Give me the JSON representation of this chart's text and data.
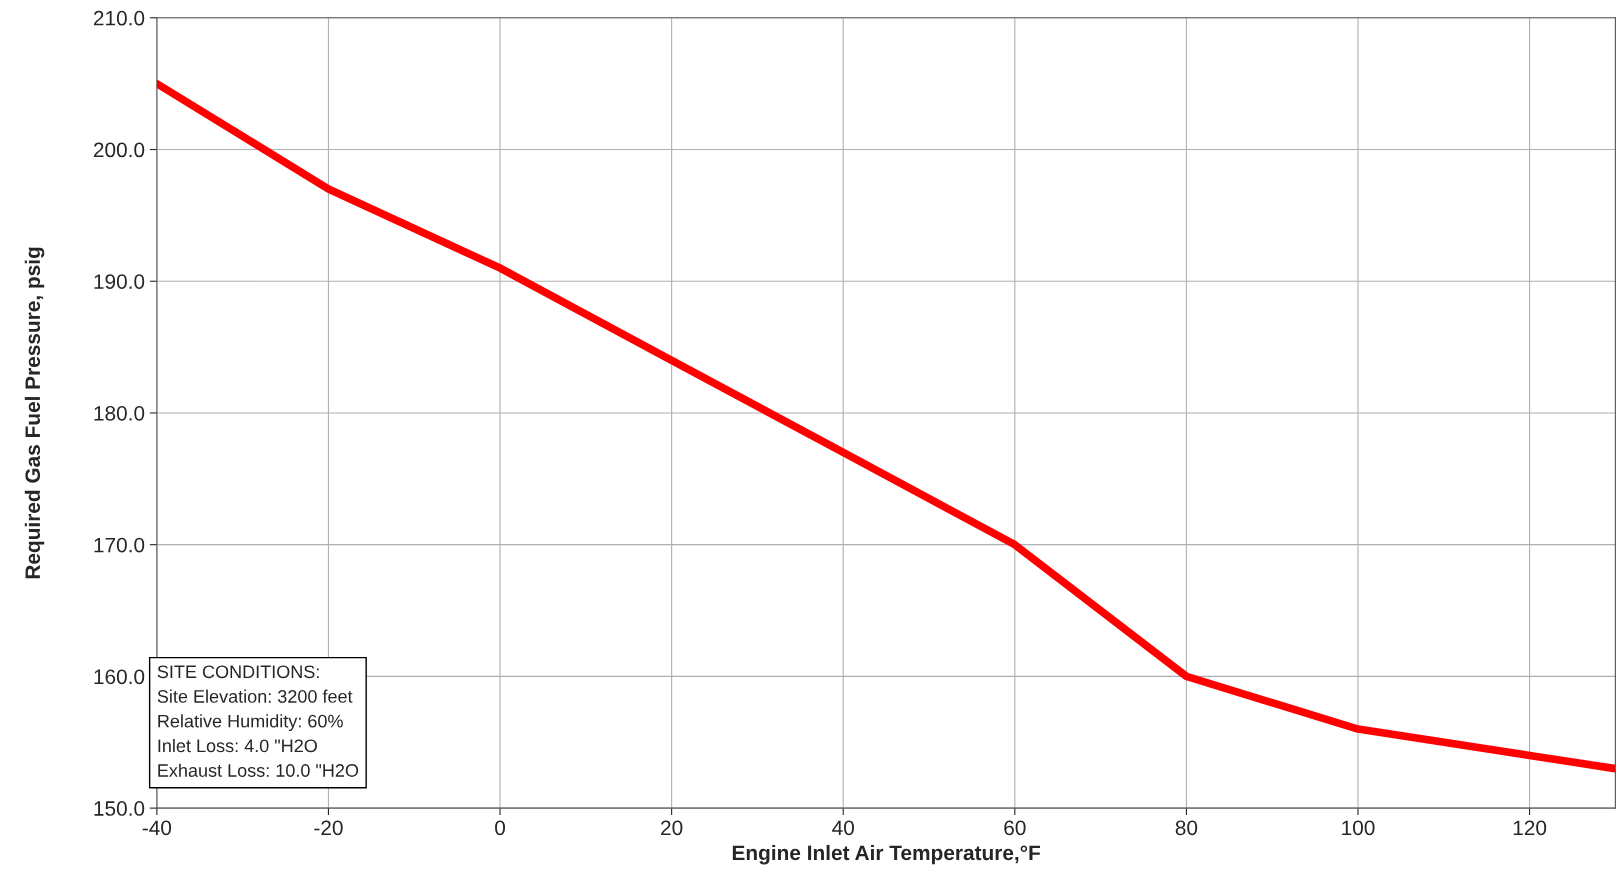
{
  "chart_data": {
    "type": "line",
    "xlabel": "Engine Inlet Air Temperature,°F",
    "ylabel": "Required Gas Fuel Pressure, psig",
    "x": [
      -40,
      -20,
      0,
      20,
      40,
      60,
      80,
      100,
      120,
      130
    ],
    "series": [
      {
        "color": "#ff0000",
        "values": [
          205,
          197,
          191,
          184,
          177,
          170,
          160,
          156,
          154,
          153
        ]
      }
    ],
    "xlim": [
      -40,
      130
    ],
    "xticks": [
      -40,
      -20,
      0,
      20,
      40,
      60,
      80,
      100,
      120
    ],
    "ylim": [
      150,
      210
    ],
    "yticks": [
      {
        "value": 150,
        "label": "150.0"
      },
      {
        "value": 160,
        "label": "160.0"
      },
      {
        "value": 170,
        "label": "170.0"
      },
      {
        "value": 180,
        "label": "180.0"
      },
      {
        "value": 190,
        "label": "190.0"
      },
      {
        "value": 200,
        "label": "200.0"
      },
      {
        "value": 210,
        "label": "210.0"
      }
    ],
    "grid": true,
    "legend": false,
    "marker": "none",
    "line_style": "solid",
    "annotations": [
      "SITE CONDITIONS:",
      "Site Elevation: 3200 feet",
      "Relative Humidity: 60%",
      "Inlet Loss: 4.0 \"H2O",
      "Exhaust Loss: 10.0 \"H2O"
    ]
  }
}
